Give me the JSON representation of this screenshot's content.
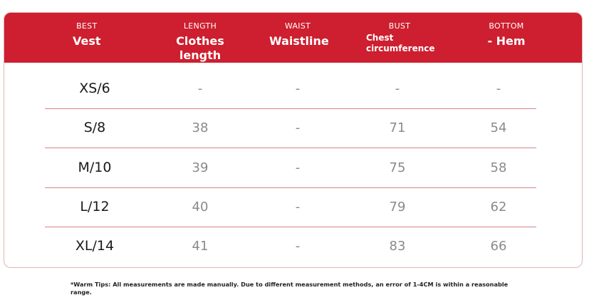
{
  "header": {
    "columns": [
      {
        "en": "BEST",
        "zh": "Vest"
      },
      {
        "en": "LENGTH",
        "zh": "Clothes length"
      },
      {
        "en": "WAIST",
        "zh": "Waistline"
      },
      {
        "en": "BUST",
        "zh": "Chest circumference"
      },
      {
        "en": "BOTTOM",
        "zh": "- Hem"
      }
    ]
  },
  "rows": [
    {
      "size": "XS/6",
      "length": "-",
      "waist": "-",
      "bust": "-",
      "bottom": "-"
    },
    {
      "size": "S/8",
      "length": "38",
      "waist": "-",
      "bust": "71",
      "bottom": "54"
    },
    {
      "size": "M/10",
      "length": "39",
      "waist": "-",
      "bust": "75",
      "bottom": "58"
    },
    {
      "size": "L/12",
      "length": "40",
      "waist": "-",
      "bust": "79",
      "bottom": "62"
    },
    {
      "size": "XL/14",
      "length": "41",
      "waist": "-",
      "bust": "83",
      "bottom": "66"
    }
  ],
  "tip": "*Warm Tips: All measurements are made manually. Due to different measurement methods, an error of 1-4CM is within a reasonable range.",
  "colors": {
    "header_bg": "#cd1f2f",
    "divider": "#d9838a"
  }
}
